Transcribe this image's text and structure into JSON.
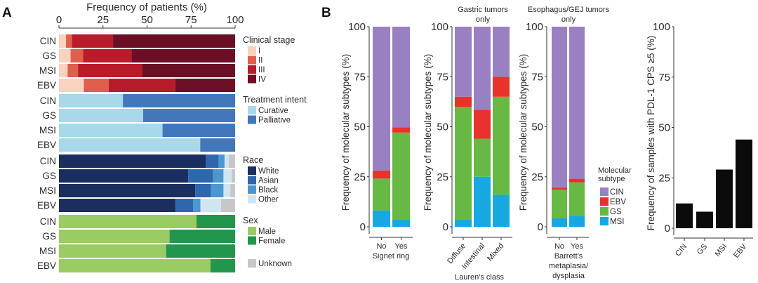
{
  "panels": {
    "a_label": "A",
    "b_label": "B"
  },
  "colors": {
    "stage": [
      "#f9d2c0",
      "#df5f4c",
      "#b81c2a",
      "#6a0f26"
    ],
    "treatment": [
      "#a8d8ea",
      "#4377bc"
    ],
    "race": [
      "#1a2f5f",
      "#2d68ae",
      "#4a98cf",
      "#cfe6f2",
      "#c7c7c9"
    ],
    "sex": [
      "#9bcb63",
      "#23964d",
      "#c7c7c9"
    ],
    "subtype": {
      "CIN": "#9880c2",
      "EBV": "#e8322b",
      "GS": "#67b844",
      "MSI": "#17a8e0"
    },
    "pdl1": "#0b0b0b"
  },
  "chart_data": [
    {
      "id": "A",
      "type": "bar",
      "orientation": "horizontal-stacked",
      "title": "Frequency of patients (%)",
      "xlabel": "Frequency of patients (%)",
      "xlim": [
        0,
        100
      ],
      "xticks": [
        "0",
        "25",
        "50",
        "75",
        "100"
      ],
      "categories": [
        "CIN",
        "GS",
        "MSI",
        "EBV"
      ],
      "groups": [
        {
          "name": "Clinical stage",
          "series": [
            {
              "name": "I",
              "values": [
                4.0,
                6.6,
                4.9,
                14.1
              ]
            },
            {
              "name": "II",
              "values": [
                3.4,
                7.1,
                5.9,
                14.2
              ]
            },
            {
              "name": "III",
              "values": [
                23.3,
                27.5,
                36.3,
                37.8
              ]
            },
            {
              "name": "IV",
              "values": [
                69.3,
                58.8,
                52.9,
                33.9
              ]
            }
          ]
        },
        {
          "name": "Treatment intent",
          "series": [
            {
              "name": "Curative",
              "values": [
                36.3,
                47.8,
                58.8,
                80.2
              ]
            },
            {
              "name": "Palliative",
              "values": [
                63.7,
                52.2,
                41.2,
                19.8
              ]
            }
          ]
        },
        {
          "name": "Race",
          "series": [
            {
              "name": "White",
              "values": [
                83.4,
                73.4,
                77.4,
                66.1
              ]
            },
            {
              "name": "Asian",
              "values": [
                7.3,
                14.0,
                8.9,
                10.0
              ]
            },
            {
              "name": "Black",
              "values": [
                3.3,
                6.0,
                7.1,
                4.2
              ]
            },
            {
              "name": "Other",
              "values": [
                2.4,
                4.6,
                3.9,
                11.7
              ]
            },
            {
              "name": "Unknown",
              "values": [
                3.6,
                2.0,
                2.7,
                8.0
              ]
            }
          ]
        },
        {
          "name": "Sex",
          "series": [
            {
              "name": "Male",
              "values": [
                78.0,
                62.8,
                60.8,
                86.0
              ]
            },
            {
              "name": "Female",
              "values": [
                22.0,
                37.2,
                39.2,
                14.0
              ]
            },
            {
              "name": "Unknown",
              "values": [
                0,
                0,
                0,
                0
              ]
            }
          ]
        }
      ],
      "legend_unknown_label": "Unknown"
    },
    {
      "id": "B1",
      "type": "bar",
      "orientation": "vertical-stacked",
      "title": "",
      "ylabel": "Frequency of molecular subtypes (%)",
      "xlabel": "Signet ring",
      "ylim": [
        0,
        100
      ],
      "yticks": [
        "0",
        "25",
        "50",
        "75",
        "100"
      ],
      "categories": [
        "No",
        "Yes"
      ],
      "series": [
        {
          "name": "MSI",
          "values": [
            8.2,
            3.5
          ]
        },
        {
          "name": "GS",
          "values": [
            15.9,
            43.6
          ]
        },
        {
          "name": "EBV",
          "values": [
            4.0,
            2.6
          ]
        },
        {
          "name": "CIN",
          "values": [
            71.9,
            50.3
          ]
        }
      ]
    },
    {
      "id": "B2",
      "type": "bar",
      "orientation": "vertical-stacked",
      "title": "Gastric tumors only",
      "title_lines": [
        "Gastric tumors",
        "only"
      ],
      "ylabel": "Frequency of molecular subtypes (%)",
      "xlabel": "Lauren's class",
      "ylim": [
        0,
        100
      ],
      "yticks": [
        "0",
        "25",
        "50",
        "75",
        "100"
      ],
      "categories": [
        "Diffuse",
        "Intestinal",
        "Mixed"
      ],
      "series": [
        {
          "name": "MSI",
          "values": [
            3.5,
            25.0,
            16.0
          ]
        },
        {
          "name": "GS",
          "values": [
            56.5,
            19.0,
            49.0
          ]
        },
        {
          "name": "EBV",
          "values": [
            5.0,
            14.5,
            10.0
          ]
        },
        {
          "name": "CIN",
          "values": [
            35.0,
            41.5,
            25.0
          ]
        }
      ]
    },
    {
      "id": "B3",
      "type": "bar",
      "orientation": "vertical-stacked",
      "title": "Esophagus/GEJ tumors only",
      "title_lines": [
        "Esophagus/GEJ tumors",
        "only"
      ],
      "ylabel": "Frequency of molecular subtypes (%)",
      "xlabel": "Barrett's metaplasia/ dysplasia",
      "xlabel_lines": [
        "Barrett's",
        "metaplasia/",
        "dysplasia"
      ],
      "ylim": [
        0,
        100
      ],
      "yticks": [
        "0",
        "25",
        "50",
        "75",
        "100"
      ],
      "categories": [
        "No",
        "Yes"
      ],
      "series": [
        {
          "name": "MSI",
          "values": [
            4.2,
            5.5
          ]
        },
        {
          "name": "GS",
          "values": [
            14.4,
            16.7
          ]
        },
        {
          "name": "EBV",
          "values": [
            1.0,
            1.8
          ]
        },
        {
          "name": "CIN",
          "values": [
            80.4,
            76.0
          ]
        }
      ],
      "legend": {
        "title_lines": [
          "Molecular",
          "subtype"
        ],
        "items": [
          "CIN",
          "EBV",
          "GS",
          "MSI"
        ],
        "placement": "right"
      }
    },
    {
      "id": "B4",
      "type": "bar",
      "orientation": "vertical",
      "title": "",
      "ylabel": "Frequency of samples with PDL-1 CPS ≥5 (%)",
      "xlabel": "",
      "ylim": [
        0,
        100
      ],
      "yticks": [
        "0",
        "25",
        "50",
        "75",
        "100"
      ],
      "categories": [
        "CIN",
        "GS",
        "MSI",
        "EBV"
      ],
      "values": [
        12.3,
        8.2,
        29.1,
        44.0
      ]
    }
  ]
}
